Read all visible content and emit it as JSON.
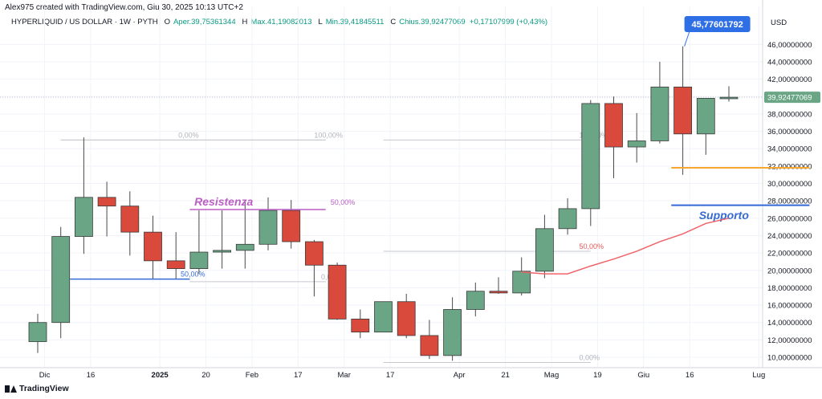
{
  "header": {
    "attribution": "Alex975 created with TradingView.com, Giu 30, 2025 10:13 UTC+2",
    "symbol": "HYPERLIQUID / US DOLLAR · 1W · PYTH",
    "open_label": "O",
    "open_value": "Aper.39,75361344",
    "high_label": "H",
    "high_value": "Max.41,19082013",
    "low_label": "L",
    "low_value": "Min.39,41845511",
    "close_label": "C",
    "close_value": "Chius.39,92477069",
    "change": "+0,17107999 (+0,43%)"
  },
  "footer": {
    "brand": "TradingView"
  },
  "colors": {
    "up": "#6aa685",
    "down": "#d9493c",
    "support": "#3569d4",
    "resistance": "#bb5fc6",
    "orange": "#f7a72e",
    "ma": "#f0636a",
    "grid": "#f0f3fa",
    "axis_text": "#131722",
    "price_badge": "#6aa685",
    "peak_badge": "#2f6fe6"
  },
  "chart_data": {
    "type": "candlestick",
    "timeframe": "1W",
    "currency_label": "USD",
    "ylim": [
      8.8,
      47.6
    ],
    "y_ticks": [
      10,
      12,
      14,
      16,
      18,
      20,
      22,
      24,
      26,
      28,
      30,
      32,
      34,
      36,
      38,
      40,
      42,
      44,
      46
    ],
    "y_tick_labels": [
      "10,00000000",
      "12,00000000",
      "14,00000000",
      "16,00000000",
      "18,00000000",
      "20,00000000",
      "22,00000000",
      "24,00000000",
      "26,00000000",
      "28,00000000",
      "30,00000000",
      "32,00000000",
      "34,00000000",
      "36,00000000",
      "38,00000000",
      "40,00000000",
      "42,00000000",
      "44,00000000",
      "46,00000000"
    ],
    "x_tick_labels": [
      {
        "label": "Dic",
        "index": 0.3
      },
      {
        "label": "16",
        "index": 2.3
      },
      {
        "label": "2025",
        "index": 5.3
      },
      {
        "label": "20",
        "index": 7.3
      },
      {
        "label": "Feb",
        "index": 9.3
      },
      {
        "label": "17",
        "index": 11.3
      },
      {
        "label": "Mar",
        "index": 13.3
      },
      {
        "label": "17",
        "index": 15.3
      },
      {
        "label": "Apr",
        "index": 18.3
      },
      {
        "label": "21",
        "index": 20.3
      },
      {
        "label": "Mag",
        "index": 22.3
      },
      {
        "label": "19",
        "index": 24.3
      },
      {
        "label": "Giu",
        "index": 26.3
      },
      {
        "label": "16",
        "index": 28.3
      },
      {
        "label": "Lug",
        "index": 31.3
      }
    ],
    "candles": [
      {
        "o": 11.8,
        "h": 15.0,
        "l": 10.5,
        "c": 14.0
      },
      {
        "o": 14.0,
        "h": 25.0,
        "l": 12.2,
        "c": 23.9
      },
      {
        "o": 23.9,
        "h": 35.3,
        "l": 21.9,
        "c": 28.4
      },
      {
        "o": 28.4,
        "h": 30.2,
        "l": 23.9,
        "c": 27.4
      },
      {
        "o": 27.4,
        "h": 29.1,
        "l": 21.7,
        "c": 24.4
      },
      {
        "o": 24.4,
        "h": 26.3,
        "l": 19.0,
        "c": 21.1
      },
      {
        "o": 21.1,
        "h": 24.4,
        "l": 19.0,
        "c": 20.2
      },
      {
        "o": 20.2,
        "h": 26.9,
        "l": 19.6,
        "c": 22.1
      },
      {
        "o": 22.1,
        "h": 26.9,
        "l": 20.2,
        "c": 22.3
      },
      {
        "o": 22.3,
        "h": 27.9,
        "l": 20.2,
        "c": 23.0
      },
      {
        "o": 23.0,
        "h": 28.4,
        "l": 22.3,
        "c": 26.9
      },
      {
        "o": 26.9,
        "h": 28.1,
        "l": 22.5,
        "c": 23.3
      },
      {
        "o": 23.3,
        "h": 23.5,
        "l": 17.0,
        "c": 20.6
      },
      {
        "o": 20.6,
        "h": 20.9,
        "l": 14.3,
        "c": 14.4
      },
      {
        "o": 14.4,
        "h": 15.5,
        "l": 12.2,
        "c": 12.9
      },
      {
        "o": 12.9,
        "h": 16.4,
        "l": 12.9,
        "c": 16.4
      },
      {
        "o": 16.4,
        "h": 17.3,
        "l": 12.2,
        "c": 12.5
      },
      {
        "o": 12.5,
        "h": 14.3,
        "l": 9.8,
        "c": 10.2
      },
      {
        "o": 10.2,
        "h": 16.9,
        "l": 9.6,
        "c": 15.5
      },
      {
        "o": 15.5,
        "h": 18.6,
        "l": 14.7,
        "c": 17.6
      },
      {
        "o": 17.6,
        "h": 19.2,
        "l": 17.3,
        "c": 17.4
      },
      {
        "o": 17.4,
        "h": 21.5,
        "l": 17.1,
        "c": 19.9
      },
      {
        "o": 19.9,
        "h": 26.4,
        "l": 19.1,
        "c": 24.8
      },
      {
        "o": 24.8,
        "h": 28.3,
        "l": 24.1,
        "c": 27.1
      },
      {
        "o": 27.1,
        "h": 39.6,
        "l": 25.1,
        "c": 39.2
      },
      {
        "o": 39.2,
        "h": 40.0,
        "l": 30.6,
        "c": 34.2
      },
      {
        "o": 34.2,
        "h": 38.1,
        "l": 32.4,
        "c": 34.9
      },
      {
        "o": 34.9,
        "h": 44.0,
        "l": 34.6,
        "c": 41.1
      },
      {
        "o": 41.1,
        "h": 45.78,
        "l": 31.0,
        "c": 35.7
      },
      {
        "o": 35.7,
        "h": 39.8,
        "l": 33.3,
        "c": 39.8
      },
      {
        "o": 39.75,
        "h": 41.19,
        "l": 39.42,
        "c": 39.92
      }
    ],
    "moving_average": [
      {
        "index": 21,
        "value": 19.8
      },
      {
        "index": 22,
        "value": 19.6
      },
      {
        "index": 23,
        "value": 19.6
      },
      {
        "index": 24,
        "value": 20.5
      },
      {
        "index": 25,
        "value": 21.3
      },
      {
        "index": 26,
        "value": 22.2
      },
      {
        "index": 27,
        "value": 23.3
      },
      {
        "index": 28,
        "value": 24.2
      },
      {
        "index": 29,
        "value": 25.4
      },
      {
        "index": 30,
        "value": 26.0
      }
    ],
    "fib_levels": [
      {
        "group": "a",
        "label": "0,00%",
        "value": 35.0,
        "from": 1.0,
        "to": 12.5,
        "label_at": 6.1
      },
      {
        "group": "a",
        "label": "100,00%",
        "value": 35.0,
        "from": 1.0,
        "to": 12.5,
        "label_at": 12.0
      },
      {
        "group": "a",
        "label": "50,00%",
        "value": 19.0,
        "from": 2.0,
        "to": 6.6,
        "label_at": 6.2
      },
      {
        "group": "a",
        "label": "0,00%",
        "value": 18.7,
        "from": 6.6,
        "to": 12.5,
        "label_at": 12.3
      },
      {
        "group": "b",
        "label": "100,00%",
        "value": 35.0,
        "from": 15.0,
        "to": 24.0,
        "label_at": 23.5
      },
      {
        "group": "b",
        "label": "50,00%",
        "value": 22.2,
        "from": 15.0,
        "to": 24.0,
        "label_at": 23.5
      },
      {
        "group": "b",
        "label": "0,00%",
        "value": 9.4,
        "from": 15.0,
        "to": 24.0,
        "label_at": 23.5
      }
    ],
    "annotations": [
      {
        "label": "Resistenza",
        "kind": "resistance",
        "value": 27.0,
        "from": 6.6,
        "to": 12.5,
        "text_at": 6.8,
        "tag": "50,00%"
      },
      {
        "label": "Supporto",
        "kind": "support",
        "value": 27.5,
        "from": 27.5,
        "to": 33.5,
        "text_at": 28.7
      }
    ],
    "orange_line": {
      "value": 31.8,
      "from": 27.5,
      "to": 33.5
    },
    "last_price": {
      "value": 39.92477069,
      "label": "39,92477069"
    },
    "peak": {
      "value": 45.77601792,
      "label": "45,77601792",
      "index": 28
    }
  }
}
